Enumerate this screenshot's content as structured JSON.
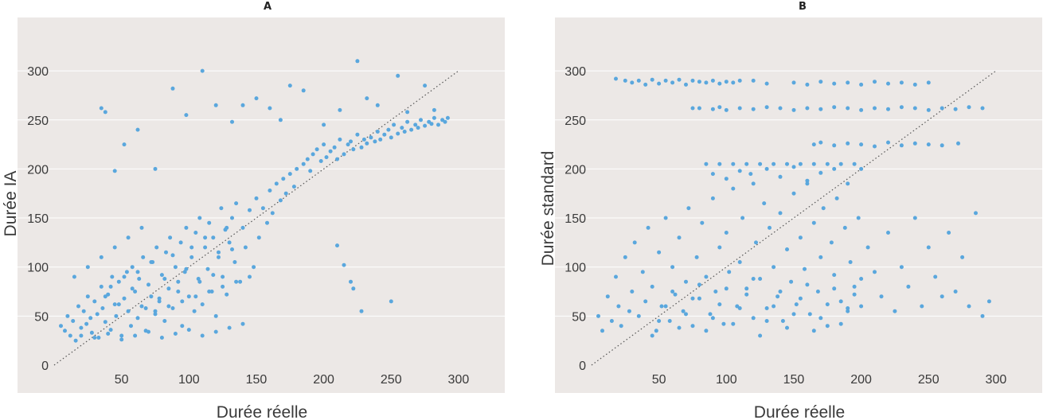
{
  "colors": {
    "points": "#5aa7dd",
    "plot_background": "#ece8e6",
    "gridlines": "#ffffff",
    "diagonal": "#555555"
  },
  "chart_data": [
    {
      "type": "scatter",
      "title": "A",
      "xlabel": "Durée réelle",
      "ylabel": "Durée IA",
      "xlim": [
        0,
        300
      ],
      "ylim": [
        0,
        300
      ],
      "xticks": [
        "50",
        "100",
        "150",
        "200",
        "250",
        "300"
      ],
      "yticks": [
        "0",
        "50",
        "100",
        "150",
        "200",
        "250",
        "300"
      ],
      "grid": "horizontal",
      "reference_line": "y = x (dotted)",
      "points": {
        "x": [
          5,
          8,
          10,
          12,
          14,
          16,
          18,
          20,
          22,
          24,
          25,
          27,
          28,
          30,
          32,
          33,
          35,
          36,
          38,
          40,
          42,
          43,
          45,
          46,
          48,
          50,
          52,
          54,
          55,
          57,
          58,
          60,
          62,
          63,
          65,
          66,
          68,
          70,
          72,
          73,
          75,
          76,
          78,
          80,
          82,
          83,
          85,
          86,
          88,
          90,
          92,
          94,
          95,
          97,
          98,
          100,
          102,
          104,
          105,
          107,
          108,
          110,
          112,
          114,
          115,
          117,
          118,
          120,
          122,
          124,
          125,
          127,
          128,
          130,
          132,
          134,
          135,
          138,
          140,
          142,
          145,
          148,
          150,
          152,
          155,
          158,
          160,
          162,
          165,
          168,
          170,
          172,
          175,
          178,
          180,
          185,
          188,
          190,
          192,
          195,
          198,
          200,
          202,
          205,
          208,
          210,
          212,
          215,
          218,
          220,
          222,
          225,
          228,
          230,
          232,
          235,
          238,
          240,
          242,
          245,
          248,
          250,
          252,
          255,
          258,
          260,
          262,
          265,
          268,
          270,
          272,
          275,
          278,
          280,
          282,
          285,
          288,
          290,
          292,
          15,
          25,
          35,
          45,
          55,
          65,
          75,
          85,
          95,
          105,
          115,
          125,
          135,
          145,
          20,
          30,
          40,
          50,
          60,
          70,
          80,
          90,
          100,
          110,
          120,
          130,
          140,
          38,
          42,
          48,
          52,
          58,
          62,
          68,
          72,
          78,
          82,
          88,
          92,
          98,
          102,
          108,
          112,
          118,
          122,
          128,
          132,
          35,
          38,
          45,
          52,
          62,
          75,
          88,
          98,
          110,
          120,
          132,
          140,
          150,
          160,
          168,
          175,
          185,
          200,
          212,
          225,
          232,
          240,
          255,
          262,
          275,
          282,
          210,
          215,
          220,
          222,
          228,
          250
        ],
        "y": [
          40,
          35,
          50,
          30,
          45,
          25,
          60,
          38,
          55,
          42,
          70,
          48,
          33,
          65,
          52,
          28,
          80,
          58,
          44,
          72,
          36,
          90,
          62,
          50,
          85,
          30,
          68,
          95,
          55,
          40,
          100,
          75,
          48,
          88,
          60,
          110,
          35,
          82,
          70,
          105,
          52,
          120,
          65,
          92,
          45,
          115,
          78,
          130,
          58,
          100,
          85,
          125,
          40,
          95,
          140,
          70,
          110,
          55,
          135,
          88,
          150,
          62,
          120,
          98,
          145,
          75,
          130,
          50,
          115,
          160,
          90,
          138,
          72,
          125,
          150,
          105,
          165,
          85,
          140,
          120,
          158,
          100,
          170,
          130,
          160,
          145,
          178,
          155,
          185,
          168,
          190,
          175,
          195,
          182,
          200,
          205,
          210,
          198,
          215,
          220,
          208,
          225,
          212,
          218,
          222,
          210,
          230,
          215,
          225,
          228,
          220,
          235,
          222,
          230,
          226,
          232,
          228,
          238,
          230,
          235,
          240,
          232,
          245,
          236,
          242,
          238,
          248,
          240,
          245,
          242,
          250,
          244,
          248,
          246,
          252,
          245,
          250,
          248,
          252,
          90,
          100,
          110,
          120,
          130,
          140,
          55,
          60,
          65,
          70,
          75,
          80,
          85,
          90,
          30,
          28,
          32,
          26,
          30,
          34,
          28,
          32,
          36,
          30,
          34,
          38,
          42,
          70,
          80,
          62,
          90,
          78,
          95,
          58,
          105,
          68,
          88,
          112,
          75,
          98,
          120,
          85,
          130,
          92,
          110,
          140,
          118,
          262,
          258,
          198,
          225,
          240,
          200,
          282,
          255,
          300,
          265,
          248,
          265,
          272,
          262,
          250,
          285,
          280,
          245,
          260,
          310,
          272,
          265,
          295,
          258,
          285,
          260,
          122,
          102,
          85,
          78,
          55,
          65
        ]
      }
    },
    {
      "type": "scatter",
      "title": "B",
      "xlabel": "Durée réelle",
      "ylabel": "Durée standard",
      "xlim": [
        0,
        300
      ],
      "ylim": [
        0,
        300
      ],
      "xticks": [
        "50",
        "100",
        "150",
        "200",
        "250",
        "300"
      ],
      "yticks": [
        "0",
        "50",
        "100",
        "150",
        "200",
        "250",
        "300"
      ],
      "grid": "horizontal",
      "reference_line": "y = x (dotted)",
      "points": {
        "x": [
          18,
          25,
          30,
          35,
          40,
          45,
          50,
          55,
          60,
          65,
          70,
          75,
          80,
          85,
          90,
          95,
          100,
          105,
          110,
          120,
          130,
          150,
          160,
          170,
          180,
          190,
          200,
          210,
          220,
          230,
          240,
          250,
          75,
          80,
          90,
          95,
          100,
          110,
          120,
          130,
          140,
          150,
          160,
          170,
          180,
          190,
          200,
          210,
          220,
          230,
          240,
          250,
          260,
          270,
          280,
          290,
          165,
          170,
          180,
          190,
          200,
          210,
          220,
          230,
          240,
          250,
          260,
          272,
          5,
          8,
          12,
          15,
          18,
          20,
          22,
          25,
          28,
          30,
          32,
          35,
          38,
          40,
          42,
          45,
          48,
          50,
          52,
          55,
          58,
          60,
          62,
          65,
          68,
          70,
          72,
          75,
          78,
          80,
          82,
          85,
          88,
          90,
          92,
          95,
          98,
          100,
          102,
          105,
          108,
          110,
          112,
          115,
          118,
          120,
          122,
          125,
          128,
          130,
          132,
          135,
          138,
          140,
          142,
          145,
          148,
          150,
          152,
          155,
          158,
          160,
          162,
          165,
          168,
          170,
          172,
          175,
          178,
          180,
          182,
          185,
          188,
          190,
          192,
          195,
          198,
          200,
          205,
          210,
          215,
          220,
          225,
          230,
          235,
          240,
          245,
          250,
          255,
          260,
          265,
          270,
          275,
          280,
          285,
          290,
          295,
          45,
          50,
          55,
          60,
          65,
          70,
          75,
          80,
          85,
          90,
          95,
          100,
          105,
          110,
          115,
          120,
          125,
          130,
          135,
          140,
          145,
          150,
          155,
          160,
          165,
          170,
          175,
          180,
          185,
          190,
          195,
          200,
          85,
          90,
          95,
          100,
          105,
          110,
          115,
          120,
          125,
          130,
          135,
          140,
          145,
          150,
          155,
          160,
          165,
          170,
          175,
          180,
          185,
          190,
          195,
          200
        ],
        "y": [
          292,
          290,
          288,
          290,
          286,
          291,
          287,
          290,
          288,
          291,
          286,
          290,
          289,
          288,
          290,
          287,
          289,
          288,
          290,
          290,
          287,
          288,
          286,
          289,
          287,
          288,
          286,
          289,
          287,
          288,
          286,
          288,
          262,
          262,
          261,
          263,
          260,
          262,
          261,
          263,
          262,
          260,
          262,
          261,
          263,
          262,
          260,
          262,
          261,
          263,
          262,
          260,
          262,
          261,
          263,
          262,
          225,
          227,
          224,
          226,
          225,
          223,
          227,
          224,
          226,
          225,
          224,
          226,
          50,
          35,
          70,
          45,
          90,
          60,
          40,
          110,
          55,
          75,
          125,
          50,
          95,
          65,
          140,
          80,
          35,
          115,
          60,
          150,
          45,
          100,
          72,
          130,
          55,
          85,
          160,
          40,
          110,
          68,
          145,
          90,
          52,
          170,
          75,
          120,
          42,
          135,
          95,
          180,
          60,
          105,
          150,
          78,
          195,
          48,
          125,
          88,
          165,
          58,
          140,
          100,
          70,
          155,
          45,
          118,
          85,
          175,
          62,
          130,
          98,
          185,
          52,
          145,
          75,
          110,
          160,
          40,
          125,
          92,
          170,
          65,
          140,
          55,
          105,
          80,
          150,
          60,
          120,
          95,
          70,
          135,
          55,
          100,
          80,
          150,
          60,
          120,
          90,
          70,
          135,
          75,
          110,
          60,
          155,
          50,
          65,
          30,
          45,
          60,
          75,
          38,
          52,
          68,
          82,
          35,
          48,
          62,
          78,
          42,
          58,
          72,
          88,
          30,
          45,
          60,
          75,
          38,
          52,
          68,
          82,
          35,
          48,
          62,
          78,
          42,
          58,
          72,
          88,
          205,
          195,
          205,
          190,
          205,
          198,
          205,
          185,
          205,
          200,
          205,
          192,
          205,
          202,
          205,
          188,
          205,
          196,
          205,
          200,
          205,
          185,
          205,
          200
        ]
      }
    }
  ]
}
